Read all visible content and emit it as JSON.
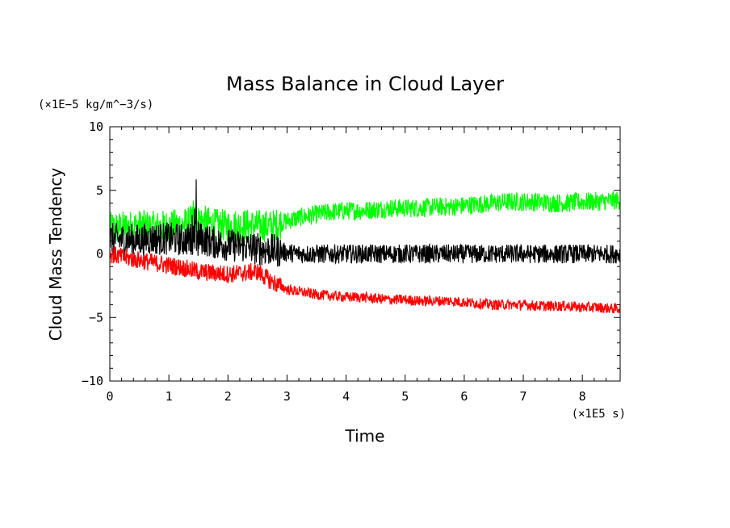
{
  "chart_data": {
    "type": "line",
    "title": "Mass Balance in Cloud Layer",
    "xlabel": "Time",
    "ylabel": "Cloud Mass Tendency",
    "x_unit": "(×1E5 s)",
    "y_unit": "(×1E−5 kg/m^−3/s)",
    "xlim": [
      0,
      8.64
    ],
    "ylim": [
      -10,
      10
    ],
    "xticks": [
      "0",
      "1",
      "2",
      "3",
      "4",
      "5",
      "6",
      "7",
      "8"
    ],
    "yticks": [
      "−10",
      "−5",
      "0",
      "5",
      "10"
    ],
    "grid": false,
    "legend": "none",
    "x": [
      0,
      0.25,
      0.5,
      0.75,
      1.0,
      1.25,
      1.5,
      1.75,
      2.0,
      2.25,
      2.5,
      2.75,
      3.0,
      3.25,
      3.5,
      3.75,
      4.0,
      4.25,
      4.5,
      4.75,
      5.0,
      5.25,
      5.5,
      5.75,
      6.0,
      6.25,
      6.5,
      6.75,
      7.0,
      7.25,
      7.5,
      7.75,
      8.0,
      8.25,
      8.5,
      8.64
    ],
    "series": [
      {
        "color": "#00ff00",
        "values": [
          2.0,
          2.1,
          2.2,
          2.1,
          2.2,
          2.3,
          2.7,
          2.3,
          2.2,
          2.3,
          2.2,
          2.2,
          2.6,
          2.9,
          3.1,
          3.3,
          3.4,
          3.4,
          3.5,
          3.6,
          3.6,
          3.6,
          3.7,
          3.7,
          3.8,
          3.9,
          4.0,
          4.1,
          4.1,
          4.1,
          4.0,
          4.0,
          4.1,
          4.1,
          4.2,
          4.2
        ]
      },
      {
        "color": "#000000",
        "values": [
          1.2,
          1.1,
          1.1,
          1.2,
          1.2,
          1.1,
          1.3,
          0.9,
          0.7,
          0.6,
          0.4,
          0.3,
          0.1,
          0.0,
          0.0,
          0.0,
          0.0,
          0.0,
          0.0,
          0.0,
          0.0,
          0.0,
          0.0,
          0.0,
          0.0,
          0.0,
          0.0,
          0.0,
          0.0,
          0.0,
          0.0,
          0.0,
          0.0,
          0.0,
          0.0,
          0.0
        ]
      },
      {
        "color": "#ff0000",
        "values": [
          0.0,
          -0.3,
          -0.5,
          -0.7,
          -0.9,
          -1.1,
          -1.4,
          -1.5,
          -1.6,
          -1.5,
          -1.4,
          -2.2,
          -2.8,
          -3.0,
          -3.2,
          -3.3,
          -3.4,
          -3.4,
          -3.5,
          -3.6,
          -3.6,
          -3.7,
          -3.7,
          -3.7,
          -3.8,
          -3.9,
          -4.0,
          -4.0,
          -4.0,
          -4.1,
          -4.1,
          -4.1,
          -4.2,
          -4.2,
          -4.3,
          -4.3
        ]
      }
    ]
  }
}
